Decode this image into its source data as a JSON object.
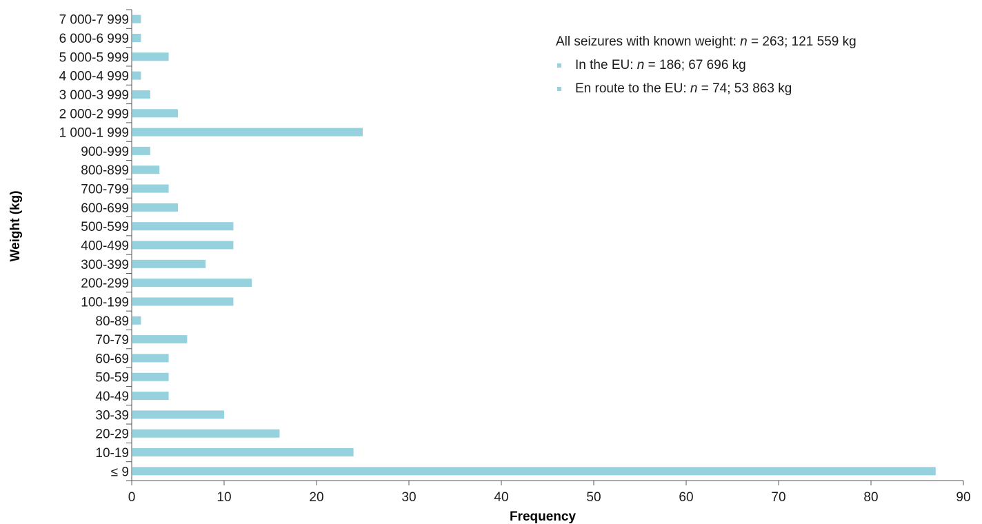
{
  "chart_data": {
    "type": "bar",
    "orientation": "horizontal",
    "xlabel": "Frequency",
    "ylabel": "Weight (kg)",
    "xlim": [
      0,
      90
    ],
    "xticks": [
      0,
      10,
      20,
      30,
      40,
      50,
      60,
      70,
      80,
      90
    ],
    "grid": false,
    "legend_position": "top-right",
    "bar_color": "#96d2dd",
    "axis_color": "#555555",
    "categories": [
      "≤ 9",
      "10-19",
      "20-29",
      "30-39",
      "40-49",
      "50-59",
      "60-69",
      "70-79",
      "80-89",
      "100-199",
      "200-299",
      "300-399",
      "400-499",
      "500-599",
      "600-699",
      "700-799",
      "800-899",
      "900-999",
      "1 000-1 999",
      "2 000-2 999",
      "3 000-3 999",
      "4 000-4 999",
      "5 000-5 999",
      "6 000-6 999",
      "7 000-7 999"
    ],
    "values": [
      87,
      24,
      16,
      10,
      4,
      4,
      4,
      6,
      1,
      11,
      13,
      8,
      11,
      11,
      5,
      4,
      3,
      2,
      25,
      5,
      2,
      1,
      4,
      1,
      1
    ],
    "legend": {
      "header_prefix": "All seizures with known weight: ",
      "header_n": "n",
      "header_suffix": " = 263; 121 559 kg",
      "items": [
        {
          "prefix": "In the EU: ",
          "n": "n",
          "suffix": " = 186; 67 696 kg",
          "color": "#96d2dd"
        },
        {
          "prefix": "En route to the EU: ",
          "n": "n",
          "suffix": " = 74; 53 863 kg",
          "color": "#96d2dd"
        }
      ]
    }
  }
}
